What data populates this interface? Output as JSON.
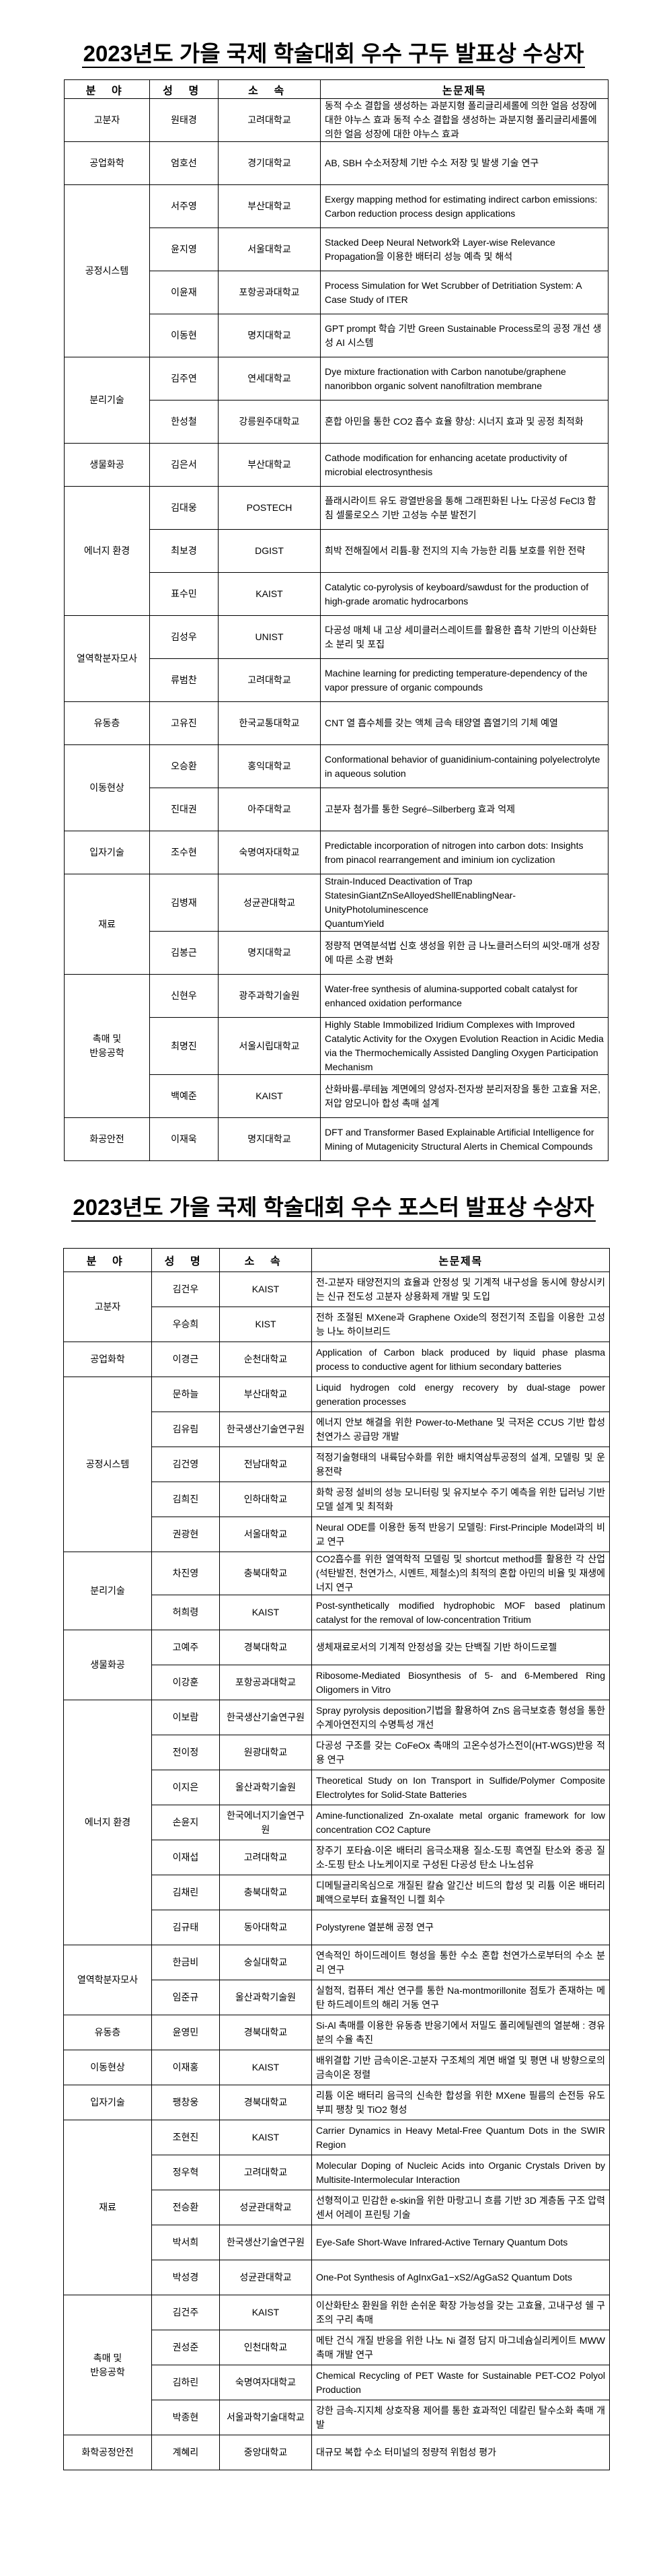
{
  "oral": {
    "title": "2023년도 가을 국제 학술대회 우수 구두 발표상 수상자",
    "headers": {
      "field": "분 야",
      "name": "성 명",
      "affiliation": "소 속",
      "paper": "논문제목"
    },
    "groups": [
      {
        "field": "고분자",
        "entries": [
          {
            "name": "원태경",
            "affiliation": "고려대학교",
            "paper": "동적 수소 결합을 생성하는 과분지형 폴리글리세롤에 의한 얼음 성장에 대한 야누스 효과 동적 수소 결합을 생성하는 과분지형 폴리글리세롤에 의한 얼음 성장에 대한 야누스 효과"
          }
        ]
      },
      {
        "field": "공업화학",
        "entries": [
          {
            "name": "엄호선",
            "affiliation": "경기대학교",
            "paper": "AB, SBH 수소저장체 기반 수소 저장 및 발생 기술 연구"
          }
        ]
      },
      {
        "field": "공정시스템",
        "entries": [
          {
            "name": "서주영",
            "affiliation": "부산대학교",
            "paper": "Exergy mapping method for estimating indirect carbon emissions: Carbon reduction process design applications"
          },
          {
            "name": "윤지영",
            "affiliation": "서울대학교",
            "paper": "Stacked Deep Neural Network와 Layer-wise Relevance Propagation을 이용한 배터리 성능 예측 및 해석"
          },
          {
            "name": "이윤재",
            "affiliation": "포항공과대학교",
            "paper": "Process Simulation for Wet Scrubber of Detritiation System: A Case Study of ITER"
          },
          {
            "name": "이동현",
            "affiliation": "명지대학교",
            "paper": "GPT prompt 학습 기반 Green Sustainable Process로의 공정 개선 생성 AI 시스템"
          }
        ]
      },
      {
        "field": "분리기술",
        "entries": [
          {
            "name": "김주연",
            "affiliation": "연세대학교",
            "paper": "Dye mixture fractionation with Carbon nanotube/graphene nanoribbon organic solvent nanofiltration membrane"
          },
          {
            "name": "한성철",
            "affiliation": "강릉원주대학교",
            "paper": "혼합 아민을 통한 CO2 흡수 효율 향상: 시너지 효과 및 공정 최적화"
          }
        ]
      },
      {
        "field": "생물화공",
        "entries": [
          {
            "name": "김은서",
            "affiliation": "부산대학교",
            "paper": "Cathode modification for enhancing acetate productivity of microbial electrosynthesis"
          }
        ]
      },
      {
        "field": "에너지 환경",
        "entries": [
          {
            "name": "김대웅",
            "affiliation": "POSTECH",
            "paper": "플래시라이트 유도 광열반응을 통해 그래핀화된 나노 다공성 FeCl3 함침 셀룰로오스 기반 고성능 수분 발전기"
          },
          {
            "name": "최보경",
            "affiliation": "DGIST",
            "paper": "희박 전해질에서 리튬-황 전지의 지속 가능한 리튬 보호를 위한 전략"
          },
          {
            "name": "표수민",
            "affiliation": "KAIST",
            "paper": "Catalytic co-pyrolysis of keyboard/sawdust for the production of high-grade aromatic hydrocarbons"
          }
        ]
      },
      {
        "field": "열역학분자모사",
        "entries": [
          {
            "name": "김성우",
            "affiliation": "UNIST",
            "paper": "다공성 매체 내 고상 세미클러스레이트를 활용한 흡착 기반의 이산화탄소 분리 및 포집"
          },
          {
            "name": "류범찬",
            "affiliation": "고려대학교",
            "paper": "Machine learning for predicting temperature-dependency of the vapor pressure of organic compounds"
          }
        ]
      },
      {
        "field": "유동층",
        "entries": [
          {
            "name": "고유진",
            "affiliation": "한국교통대학교",
            "paper": "CNT 열 흡수체를 갖는 액체 금속 태양열 흡열기의 기체 예열"
          }
        ]
      },
      {
        "field": "이동현상",
        "entries": [
          {
            "name": "오승환",
            "affiliation": "홍익대학교",
            "paper": "Conformational behavior of guanidinium-containing polyelectrolyte in aqueous solution"
          },
          {
            "name": "진대권",
            "affiliation": "아주대학교",
            "paper": "고분자 첨가를 통한 Segré–Silberberg 효과 억제"
          }
        ]
      },
      {
        "field": "입자기술",
        "entries": [
          {
            "name": "조수현",
            "affiliation": "숙명여자대학교",
            "paper": "Predictable incorporation of nitrogen into carbon dots: Insights from pinacol rearrangement and iminium ion cyclization"
          }
        ]
      },
      {
        "field": "재료",
        "entries": [
          {
            "name": "김병재",
            "affiliation": "성균관대학교",
            "paper": "Strain-Induced Deactivation of Trap StatesinGiantZnSeAlloyedShellEnablingNear-UnityPhotoluminescence\nQuantumYield"
          },
          {
            "name": "김봉근",
            "affiliation": "명지대학교",
            "paper": "정량적 면역분석법 신호 생성을 위한 금 나노클러스터의 씨앗-매개 성장에 따른 소광 변화"
          }
        ]
      },
      {
        "field": "촉매 및\n반응공학",
        "entries": [
          {
            "name": "신현우",
            "affiliation": "광주과학기술원",
            "paper": "Water-free synthesis of alumina-supported cobalt catalyst for enhanced oxidation performance"
          },
          {
            "name": "최명진",
            "affiliation": "서울시립대학교",
            "paper": "Highly Stable Immobilized Iridium Complexes with Improved Catalytic Activity for the Oxygen Evolution Reaction in Acidic Media via the Thermochemically Assisted Dangling Oxygen Participation Mechanism"
          },
          {
            "name": "백예준",
            "affiliation": "KAIST",
            "paper": "산화바륨-루테늄 계면에의 양성자-전자쌍 분리저장을 통한 고효율 저온, 저압 암모니아 합성 촉매 설계"
          }
        ]
      },
      {
        "field": "화공안전",
        "entries": [
          {
            "name": "이재욱",
            "affiliation": "명지대학교",
            "paper": "DFT and Transformer Based Explainable Artificial Intelligence for Mining of Mutagenicity Structural Alerts in Chemical Compounds"
          }
        ]
      }
    ]
  },
  "poster": {
    "title": "2023년도 가을 국제 학술대회 우수 포스터 발표상 수상자",
    "headers": {
      "field": "분 야",
      "name": "성 명",
      "affiliation": "소 속",
      "paper": "논문제목"
    },
    "groups": [
      {
        "field": "고분자",
        "entries": [
          {
            "name": "김건우",
            "affiliation": "KAIST",
            "paper": "전-고분자 태양전지의 효율과 안정성 및 기계적 내구성을 동시에 향상시키는 신규 전도성 고분자 상용화제 개발 및 도입"
          },
          {
            "name": "우승희",
            "affiliation": "KIST",
            "paper": "전하 조절된 MXene과 Graphene Oxide의 정전기적 조립을 이용한 고성능 나노 하이브리드"
          }
        ]
      },
      {
        "field": "공업화학",
        "entries": [
          {
            "name": "이경근",
            "affiliation": "순천대학교",
            "paper": "Application of Carbon black produced by liquid phase plasma process to conductive agent for lithium secondary batteries"
          }
        ]
      },
      {
        "field": "공정시스템",
        "entries": [
          {
            "name": "문하늘",
            "affiliation": "부산대학교",
            "paper": "Liquid hydrogen cold energy recovery by dual-stage power generation processes"
          },
          {
            "name": "김유림",
            "affiliation": "한국생산기술연구원",
            "paper": "에너지 안보 해결을 위한 Power-to-Methane 및 극저온 CCUS 기반 합성천연가스 공급망 개발"
          },
          {
            "name": "김건영",
            "affiliation": "전남대학교",
            "paper": "적정기술형태의 내륙담수화를 위한 배치역삼투공정의 설계, 모델링 및 운용전략"
          },
          {
            "name": "김희진",
            "affiliation": "인하대학교",
            "paper": "화학 공정 설비의 성능 모니터링 및 유지보수 주기 예측을 위한 딥러닝 기반 모델 설계 및 최적화"
          },
          {
            "name": "권광현",
            "affiliation": "서울대학교",
            "paper": "Neural ODE를 이용한 동적 반응기 모델링: First-Principle Model과의 비교 연구"
          }
        ]
      },
      {
        "field": "분리기술",
        "entries": [
          {
            "name": "차진영",
            "affiliation": "충북대학교",
            "paper": "CO2흡수를 위한 열역학적 모델링 및 shortcut method를 활용한 각 산업(석탄발전, 천연가스, 시멘트, 제철소)의 최적의 혼합 아민의 비율 및 재생에너지 연구"
          },
          {
            "name": "허희령",
            "affiliation": "KAIST",
            "paper": "Post-synthetically modified hydrophobic MOF based platinum catalyst for the removal of low-concentration Tritium"
          }
        ]
      },
      {
        "field": "생물화공",
        "entries": [
          {
            "name": "고예주",
            "affiliation": "경북대학교",
            "paper": "생체재료로서의 기계적 안정성을 갖는 단백질 기반 하이드로젤"
          },
          {
            "name": "이강훈",
            "affiliation": "포항공과대학교",
            "paper": "Ribosome-Mediated Biosynthesis of 5- and 6-Membered Ring Oligomers in Vitro"
          }
        ]
      },
      {
        "field": "에너지 환경",
        "entries": [
          {
            "name": "이보람",
            "affiliation": "한국생산기술연구원",
            "paper": "Spray pyrolysis deposition기법을 활용하여 ZnS 음극보호층 형성을 통한 수계아연전지의 수명특성 개선"
          },
          {
            "name": "전이정",
            "affiliation": "원광대학교",
            "paper": "다공성 구조를 갖는 CoFeOx 촉매의 고온수성가스전이(HT-WGS)반응 적용 연구"
          },
          {
            "name": "이지은",
            "affiliation": "울산과학기술원",
            "paper": "Theoretical Study on Ion Transport in Sulfide/Polymer Composite Electrolytes for Solid-State Batteries"
          },
          {
            "name": "손윤지",
            "affiliation": "한국에너지기술연구원",
            "paper": "Amine-functionalized Zn-oxalate metal organic framework for low concentration CO2 Capture"
          },
          {
            "name": "이재섭",
            "affiliation": "고려대학교",
            "paper": "장주기 포타슘-이온 배터리 음극소재용 질소-도핑 흑연질 탄소와 중공 질소-도핑 탄소 나노케이지로 구성된 다공성 탄소 나노섬유"
          },
          {
            "name": "김채린",
            "affiliation": "충북대학교",
            "paper": "디메틸글리옥심으로 개질된 칼슘 알긴산 비드의 합성 및 리튬 이온 배터리 폐액으로부터 효율적인 니켈 회수"
          },
          {
            "name": "김규태",
            "affiliation": "동아대학교",
            "paper": "Polystyrene 열분해 공정 연구"
          }
        ]
      },
      {
        "field": "열역학분자모사",
        "entries": [
          {
            "name": "한금비",
            "affiliation": "숭실대학교",
            "paper": "연속적인 하이드레이트 형성을 통한 수소 혼합 천연가스로부터의 수소 분리 연구"
          },
          {
            "name": "임준규",
            "affiliation": "울산과학기술원",
            "paper": "실험적, 컴퓨터 계산 연구를 통한 Na-montmorillonite 점토가 존재하는 메탄 하드레이트의 해리 거동 연구"
          }
        ]
      },
      {
        "field": "유동층",
        "entries": [
          {
            "name": "윤영민",
            "affiliation": "경북대학교",
            "paper": "Si-Al 촉매를 이용한 유동층 반응기에서 저밀도 폴리에틸렌의 열분해 : 경유분의 수율 촉진"
          }
        ]
      },
      {
        "field": "이동현상",
        "entries": [
          {
            "name": "이재홍",
            "affiliation": "KAIST",
            "paper": "배위결합 기반 금속이온-고분자 구조체의 계면 배열 및 평면 내 방향으로의 금속이온 정렬"
          }
        ]
      },
      {
        "field": "입자기술",
        "entries": [
          {
            "name": "팽창웅",
            "affiliation": "경북대학교",
            "paper": "리튬 이온 배터리 음극의 신속한 합성을 위한 MXene 필름의 손전등 유도 부피 팽창 및 TiO2 형성"
          }
        ]
      },
      {
        "field": "재료",
        "entries": [
          {
            "name": "조현진",
            "affiliation": "KAIST",
            "paper": "Carrier Dynamics in Heavy Metal-Free Quantum Dots in the SWIR Region"
          },
          {
            "name": "정우혁",
            "affiliation": "고려대학교",
            "paper": "Molecular Doping of Nucleic Acids into Organic Crystals Driven by Multisite-Intermolecular Interaction"
          },
          {
            "name": "전승환",
            "affiliation": "성균관대학교",
            "paper": "선형적이고 민감한 e-skin을 위한 마랑고니 흐름 기반 3D 계층돔 구조 압력센서 어레이 프린팅 기술"
          },
          {
            "name": "박서희",
            "affiliation": "한국생산기술연구원",
            "paper": "Eye-Safe Short-Wave Infrared-Active Ternary Quantum Dots"
          },
          {
            "name": "박성경",
            "affiliation": "성균관대학교",
            "paper": "One-Pot Synthesis of AgInxGa1−xS2/AgGaS2 Quantum Dots"
          }
        ]
      },
      {
        "field": "촉매 및\n반응공학",
        "entries": [
          {
            "name": "김건주",
            "affiliation": "KAIST",
            "paper": "이산화탄소 환원을 위한 손쉬운 확장 가능성을 갖는 고효율, 고내구성 쉘 구조의 구리 촉매"
          },
          {
            "name": "권성준",
            "affiliation": "인천대학교",
            "paper": "메탄 건식 개질 반응을 위한 나노 Ni 결정 담지 마그네슘실리케이트 MWW 촉매 개발 연구"
          },
          {
            "name": "김하린",
            "affiliation": "숙명여자대학교",
            "paper": "Chemical Recycling of PET Waste for Sustainable PET-CO2 Polyol Production"
          },
          {
            "name": "박종현",
            "affiliation": "서울과학기술대학교",
            "paper": "강한 금속-지지체 상호작용 제어를 통한 효과적인 데칼린 탈수소화 촉매 개발"
          }
        ]
      },
      {
        "field": "화학공정안전",
        "entries": [
          {
            "name": "계혜리",
            "affiliation": "중앙대학교",
            "paper": "대규모 복합 수소 터미널의 정량적 위험성 평가"
          }
        ]
      }
    ]
  }
}
